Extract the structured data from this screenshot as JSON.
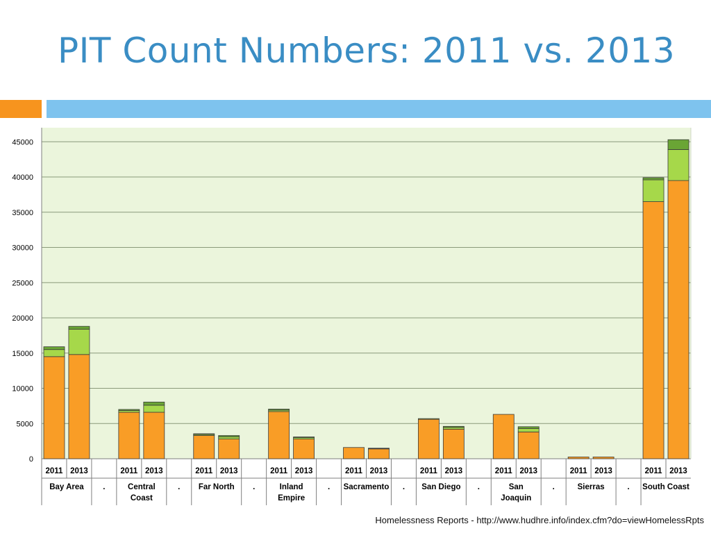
{
  "slide": {
    "title": "PIT Count Numbers: 2011 vs. 2013",
    "source": "Homelessness Reports - http://www.hudhre.info/index.cfm?do=viewHomelessRpts"
  },
  "colors": {
    "title": "#3a8dc4",
    "accent_orange": "#f7941e",
    "accent_blue": "#7ec3ee",
    "plot_background": "#ebf5dc",
    "series_1": "#f99d26",
    "series_2": "#a6d84a",
    "series_3": "#6aa535"
  },
  "chart_data": {
    "type": "bar",
    "stacked": true,
    "ylim": [
      0,
      47000
    ],
    "yticks": [
      0,
      5000,
      10000,
      15000,
      20000,
      25000,
      30000,
      35000,
      40000,
      45000
    ],
    "grid": true,
    "groups": [
      {
        "label": "Bay Area",
        "label_lines": [
          "Bay Area"
        ],
        "bars": [
          {
            "year": "2011",
            "values": [
              14500,
              1000,
              400
            ]
          },
          {
            "year": "2013",
            "values": [
              14800,
              3600,
              400
            ]
          }
        ]
      },
      {
        "label": "Central Coast",
        "label_lines": [
          "Central",
          "Coast"
        ],
        "bars": [
          {
            "year": "2011",
            "values": [
              6600,
              250,
              150
            ]
          },
          {
            "year": "2013",
            "values": [
              6600,
              1000,
              450
            ]
          }
        ]
      },
      {
        "label": "Far North",
        "label_lines": [
          "Far North"
        ],
        "bars": [
          {
            "year": "2011",
            "values": [
              3300,
              150,
              100
            ]
          },
          {
            "year": "2013",
            "values": [
              2800,
              300,
              200
            ]
          }
        ]
      },
      {
        "label": "Inland Empire",
        "label_lines": [
          "Inland",
          "Empire"
        ],
        "bars": [
          {
            "year": "2011",
            "values": [
              6700,
              200,
              150
            ]
          },
          {
            "year": "2013",
            "values": [
              2800,
              200,
              100
            ]
          }
        ]
      },
      {
        "label": "Sacramento",
        "label_lines": [
          "Sacramento"
        ],
        "bars": [
          {
            "year": "2011",
            "values": [
              1600,
              0,
              0
            ]
          },
          {
            "year": "2013",
            "values": [
              1400,
              50,
              50
            ]
          }
        ]
      },
      {
        "label": "San Diego",
        "label_lines": [
          "San Diego"
        ],
        "bars": [
          {
            "year": "2011",
            "values": [
              5600,
              100,
              0
            ]
          },
          {
            "year": "2013",
            "values": [
              4200,
              250,
              150
            ]
          }
        ]
      },
      {
        "label": "San Joaquin",
        "label_lines": [
          "San",
          "Joaquin"
        ],
        "bars": [
          {
            "year": "2011",
            "values": [
              6300,
              0,
              0
            ]
          },
          {
            "year": "2013",
            "values": [
              3800,
              500,
              250
            ]
          }
        ]
      },
      {
        "label": "Sierras",
        "label_lines": [
          "Sierras"
        ],
        "bars": [
          {
            "year": "2011",
            "values": [
              250,
              0,
              0
            ]
          },
          {
            "year": "2013",
            "values": [
              250,
              0,
              0
            ]
          }
        ]
      },
      {
        "label": "South Coast",
        "label_lines": [
          "South Coast"
        ],
        "bars": [
          {
            "year": "2011",
            "values": [
              36500,
              3100,
              300
            ]
          },
          {
            "year": "2013",
            "values": [
              39500,
              4400,
              1400
            ]
          }
        ]
      }
    ],
    "separator_label": "."
  }
}
